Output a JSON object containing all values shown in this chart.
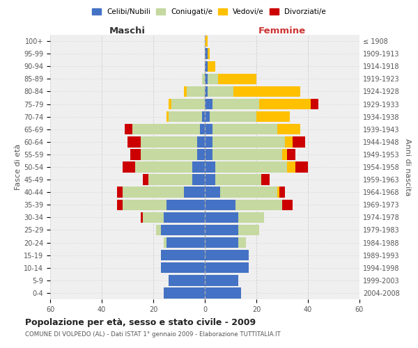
{
  "age_groups": [
    "0-4",
    "5-9",
    "10-14",
    "15-19",
    "20-24",
    "25-29",
    "30-34",
    "35-39",
    "40-44",
    "45-49",
    "50-54",
    "55-59",
    "60-64",
    "65-69",
    "70-74",
    "75-79",
    "80-84",
    "85-89",
    "90-94",
    "95-99",
    "100+"
  ],
  "birth_years": [
    "2004-2008",
    "1999-2003",
    "1994-1998",
    "1989-1993",
    "1984-1988",
    "1979-1983",
    "1974-1978",
    "1969-1973",
    "1964-1968",
    "1959-1963",
    "1954-1958",
    "1949-1953",
    "1944-1948",
    "1939-1943",
    "1934-1938",
    "1929-1933",
    "1924-1928",
    "1919-1923",
    "1914-1918",
    "1909-1913",
    "≤ 1908"
  ],
  "colors": {
    "celibi": "#4472c4",
    "coniugati": "#c5d9a0",
    "vedovi": "#ffc000",
    "divorziati": "#cc0000"
  },
  "maschi": {
    "celibi": [
      16,
      14,
      17,
      17,
      15,
      17,
      16,
      15,
      8,
      5,
      5,
      3,
      3,
      2,
      1,
      0,
      0,
      0,
      0,
      0,
      0
    ],
    "coniugati": [
      0,
      0,
      0,
      0,
      1,
      2,
      8,
      17,
      24,
      17,
      22,
      22,
      22,
      26,
      13,
      13,
      7,
      1,
      0,
      0,
      0
    ],
    "vedovi": [
      0,
      0,
      0,
      0,
      0,
      0,
      0,
      0,
      0,
      0,
      0,
      0,
      0,
      0,
      1,
      1,
      1,
      0,
      0,
      0,
      0
    ],
    "divorziati": [
      0,
      0,
      0,
      0,
      0,
      0,
      1,
      2,
      2,
      2,
      5,
      4,
      5,
      3,
      0,
      0,
      0,
      0,
      0,
      0,
      0
    ]
  },
  "femmine": {
    "celibi": [
      14,
      13,
      17,
      17,
      13,
      13,
      13,
      12,
      6,
      4,
      4,
      3,
      3,
      3,
      2,
      3,
      1,
      1,
      1,
      1,
      0
    ],
    "coniugati": [
      0,
      0,
      0,
      0,
      3,
      8,
      10,
      18,
      22,
      18,
      28,
      27,
      28,
      25,
      18,
      18,
      10,
      4,
      0,
      0,
      0
    ],
    "vedovi": [
      0,
      0,
      0,
      0,
      0,
      0,
      0,
      0,
      1,
      0,
      3,
      2,
      3,
      9,
      13,
      20,
      26,
      15,
      3,
      1,
      1
    ],
    "divorziati": [
      0,
      0,
      0,
      0,
      0,
      0,
      0,
      4,
      2,
      3,
      5,
      3,
      5,
      0,
      0,
      3,
      0,
      0,
      0,
      0,
      0
    ]
  },
  "title": "Popolazione per età, sesso e stato civile - 2009",
  "subtitle": "COMUNE DI VOLPEDO (AL) - Dati ISTAT 1° gennaio 2009 - Elaborazione TUTTITALIA.IT",
  "xlabel_left": "Maschi",
  "xlabel_right": "Femmine",
  "ylabel_left": "Fasce di età",
  "ylabel_right": "Anni di nascita",
  "xlim": 60,
  "legend_labels": [
    "Celibi/Nubili",
    "Coniugati/e",
    "Vedovi/e",
    "Divorziati/e"
  ],
  "bg_color": "#ffffff",
  "plot_bg_color": "#efefef",
  "grid_color": "#cccccc",
  "bar_height": 0.85
}
